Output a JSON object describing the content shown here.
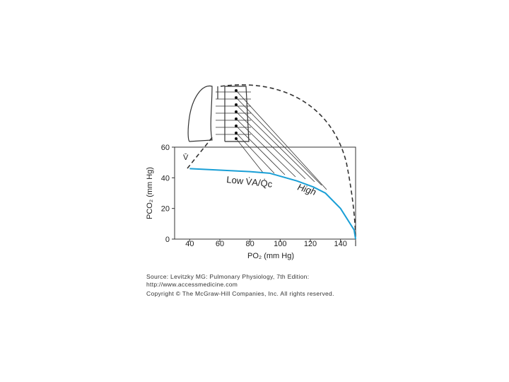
{
  "chart_data": {
    "type": "line",
    "x_label": "PO₂ (mm Hg)",
    "y_label": "PCO₂ (mm Hg)",
    "annotations": {
      "mixed_venous": "V̄",
      "low": "Low V̇A/Q̇c",
      "high": "High"
    },
    "xlim": [
      30,
      150
    ],
    "ylim": [
      0,
      60
    ],
    "xticks": [
      40,
      60,
      80,
      100,
      120,
      140,
      {
        "value": 150,
        "label": "I"
      }
    ],
    "yticks": [
      0,
      20,
      40,
      60
    ],
    "series": [
      {
        "color": "#1a9fd6",
        "x": [
          40,
          60,
          80,
          93,
          111,
          122,
          130,
          140,
          149,
          150
        ],
        "values": [
          46,
          45,
          44,
          43,
          38,
          34,
          30,
          20,
          6,
          0
        ]
      }
    ],
    "source": [
      "Source: Levitzky MG: Pulmonary Physiology, 7th Edition:",
      "http://www.accessmedicine.com"
    ],
    "copyright": "Copyright © The McGraw-Hill Companies, Inc. All rights reserved."
  }
}
